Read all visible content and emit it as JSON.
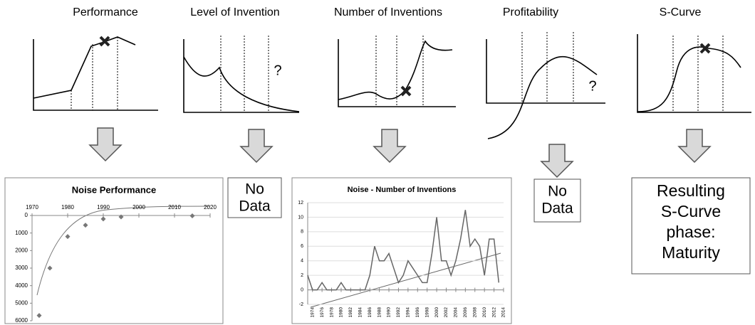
{
  "headings": [
    "Performance",
    "Level of Invention",
    "Number of Inventions",
    "Profitability",
    "S-Curve"
  ],
  "sketch_marks": [
    "?",
    "?"
  ],
  "boxes": [
    [
      "No",
      "Data"
    ],
    [
      "No",
      "Data"
    ],
    [
      "Resulting",
      "S-Curve",
      "phase:",
      "Maturity"
    ]
  ],
  "chart_data": [
    {
      "type": "scatter",
      "title": "Noise Performance",
      "x": [
        1972,
        1975,
        1980,
        1985,
        1990,
        1995,
        2015
      ],
      "values": [
        5700,
        3000,
        1200,
        550,
        200,
        80,
        20
      ],
      "xlim": [
        1970,
        2020
      ],
      "xticks": [
        1970,
        1980,
        1990,
        2000,
        2010,
        2020
      ],
      "ylim": [
        6000,
        0
      ],
      "yticks": [
        0,
        1000,
        2000,
        3000,
        4000,
        5000,
        6000
      ],
      "color": "#777777"
    },
    {
      "type": "line",
      "title": "Noise - Number of Inventions",
      "x": [
        1973,
        1974,
        1975,
        1976,
        1977,
        1978,
        1979,
        1980,
        1981,
        1982,
        1983,
        1984,
        1985,
        1986,
        1987,
        1988,
        1989,
        1990,
        1991,
        1992,
        1993,
        1994,
        1995,
        1996,
        1997,
        1998,
        1999,
        2000,
        2001,
        2002,
        2003,
        2004,
        2005,
        2006,
        2007,
        2008,
        2009,
        2010,
        2011,
        2012,
        2013
      ],
      "values": [
        2,
        0,
        0,
        1,
        0,
        0,
        0,
        1,
        0,
        0,
        0,
        0,
        0,
        2,
        6,
        4,
        4,
        5,
        3,
        1,
        2,
        4,
        3,
        2,
        1,
        1,
        5,
        10,
        4,
        4,
        2,
        4,
        7,
        11,
        6,
        7,
        6,
        2,
        7,
        7,
        1
      ],
      "xlim": [
        1973,
        2014
      ],
      "xticks": [
        1974,
        1976,
        1978,
        1980,
        1982,
        1984,
        1986,
        1988,
        1990,
        1992,
        1994,
        1996,
        1998,
        2000,
        2002,
        2004,
        2006,
        2008,
        2010,
        2012,
        2014
      ],
      "ylim": [
        -2,
        12
      ],
      "yticks": [
        -2,
        0,
        2,
        4,
        6,
        8,
        10,
        12
      ],
      "color": "#666666",
      "grid": true
    }
  ]
}
